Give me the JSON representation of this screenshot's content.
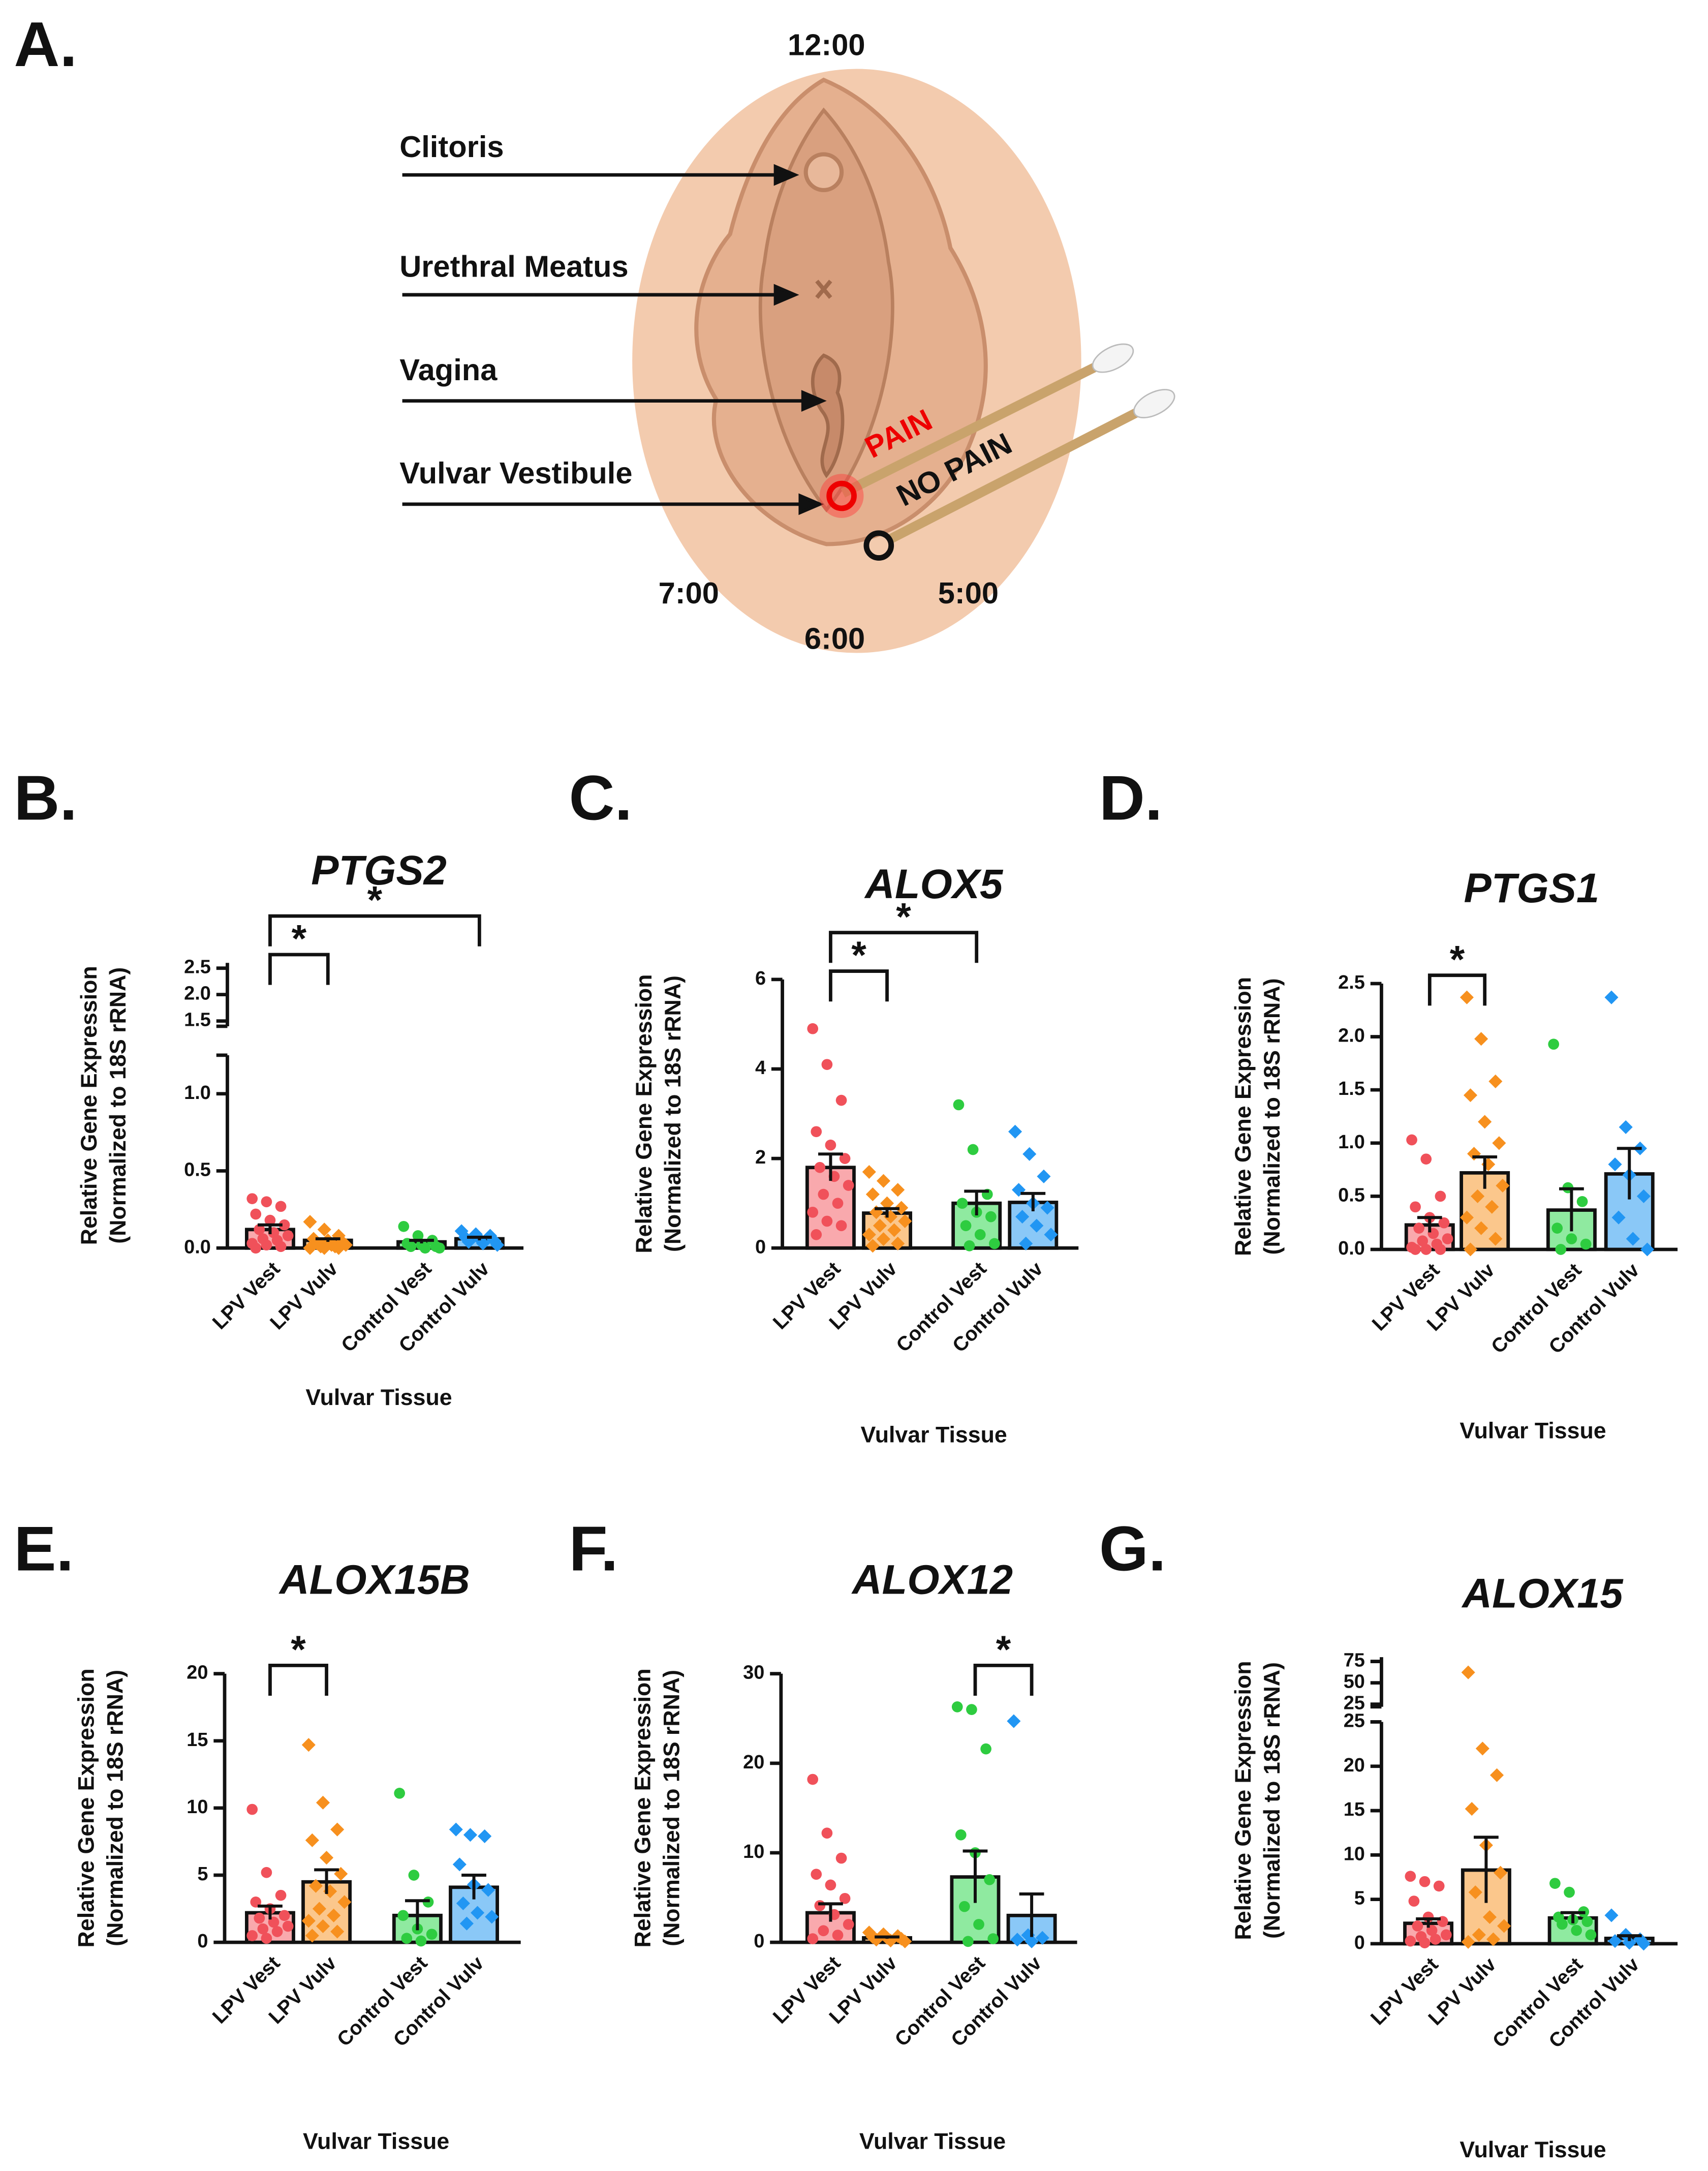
{
  "diagram": {
    "panel": "A.",
    "labels": [
      "Clitoris",
      "Urethral Meatus",
      "Vagina",
      "Vulvar Vestibule"
    ],
    "clock": [
      "12:00",
      "7:00",
      "5:00",
      "6:00"
    ],
    "pain": "PAIN",
    "no_pain": "NO PAIN"
  },
  "chart_data": [
    {
      "type": "bar",
      "panel": "B.",
      "title": "PTGS2",
      "ylabel": [
        "Relative Gene Expression",
        "(Normalized to 18S rRNA)"
      ],
      "xlabel": "Vulvar Tissue",
      "categories": [
        "LPV Vest",
        "LPV Vulv",
        "Control Vest",
        "Control Vulv"
      ],
      "colors": [
        "#f0515a",
        "#f7901e",
        "#2ecc40",
        "#2196f3"
      ],
      "fills": [
        "#f9a9ad",
        "#fbc78c",
        "#8feaa0",
        "#8ac8f7"
      ],
      "markers": [
        "circle",
        "diamond",
        "circle",
        "diamond"
      ],
      "values": [
        0.12,
        0.05,
        0.04,
        0.06
      ],
      "errors": [
        0.03,
        0.01,
        0.01,
        0.01
      ],
      "points": [
        [
          0.32,
          0.3,
          0.27,
          0.22,
          0.18,
          0.15,
          0.12,
          0.1,
          0.08,
          0.06,
          0.05,
          0.03,
          0.02,
          0.01,
          0.0
        ],
        [
          0.17,
          0.12,
          0.08,
          0.06,
          0.05,
          0.04,
          0.03,
          0.02,
          0.02,
          0.01,
          0.01,
          0.0,
          0.0,
          0.0
        ],
        [
          0.14,
          0.08,
          0.05,
          0.03,
          0.02,
          0.01,
          0.01,
          0.0,
          0.0
        ],
        [
          0.11,
          0.09,
          0.08,
          0.07,
          0.06,
          0.05,
          0.04,
          0.03,
          0.02
        ]
      ],
      "ylim": [
        0,
        1.25
      ],
      "yticks": [
        {
          "value": 0,
          "label": "0.0"
        },
        0.5,
        {
          "value": 1,
          "label": "1.0"
        }
      ],
      "upper_ylim": [
        1.4,
        2.6
      ],
      "upper_yticks": [
        1.5,
        {
          "value": 2,
          "label": "2.0"
        },
        2.5
      ],
      "significance": [
        {
          "from": 0,
          "to": 1,
          "label": "*"
        },
        {
          "from": 0,
          "to": 3,
          "label": "*"
        }
      ]
    },
    {
      "type": "bar",
      "panel": "C.",
      "title": "ALOX5",
      "ylabel": [
        "Relative Gene Expression",
        "(Normalized to 18S rRNA)"
      ],
      "xlabel": "Vulvar Tissue",
      "categories": [
        "LPV Vest",
        "LPV Vulv",
        "Control Vest",
        "Control Vulv"
      ],
      "colors": [
        "#f0515a",
        "#f7901e",
        "#2ecc40",
        "#2196f3"
      ],
      "fills": [
        "#f9a9ad",
        "#fbc78c",
        "#8feaa0",
        "#8ac8f7"
      ],
      "markers": [
        "circle",
        "diamond",
        "circle",
        "diamond"
      ],
      "values": [
        1.8,
        0.78,
        1.0,
        1.02
      ],
      "errors": [
        0.3,
        0.1,
        0.27,
        0.2
      ],
      "points": [
        [
          4.9,
          4.1,
          3.3,
          2.6,
          2.3,
          2.0,
          1.8,
          1.6,
          1.4,
          1.2,
          1.0,
          0.8,
          0.6,
          0.5,
          0.3
        ],
        [
          1.7,
          1.5,
          1.3,
          1.2,
          1.0,
          0.9,
          0.8,
          0.7,
          0.6,
          0.5,
          0.4,
          0.3,
          0.2,
          0.1,
          0.05
        ],
        [
          3.2,
          2.2,
          1.2,
          1.0,
          0.8,
          0.7,
          0.5,
          0.3,
          0.1,
          0.05
        ],
        [
          2.6,
          2.1,
          1.6,
          1.3,
          1.0,
          0.9,
          0.7,
          0.5,
          0.3,
          0.1
        ]
      ],
      "ylim": [
        0,
        6
      ],
      "yticks": [
        0,
        2,
        4,
        6
      ],
      "significance": [
        {
          "from": 0,
          "to": 1,
          "label": "*"
        },
        {
          "from": 0,
          "to": 2,
          "label": "*"
        }
      ]
    },
    {
      "type": "bar",
      "panel": "D.",
      "title": "PTGS1",
      "ylabel": [
        "Relative Gene Expression",
        "(Normalized to 18S rRNA)"
      ],
      "xlabel": "Vulvar Tissue",
      "categories": [
        "LPV Vest",
        "LPV Vulv",
        "Control Vest",
        "Control Vulv"
      ],
      "colors": [
        "#f0515a",
        "#f7901e",
        "#2ecc40",
        "#2196f3"
      ],
      "fills": [
        "#f9a9ad",
        "#fbc78c",
        "#8feaa0",
        "#8ac8f7"
      ],
      "markers": [
        "circle",
        "diamond",
        "circle",
        "diamond"
      ],
      "values": [
        0.23,
        0.72,
        0.37,
        0.71
      ],
      "errors": [
        0.07,
        0.15,
        0.2,
        0.24
      ],
      "points": [
        [
          1.03,
          0.85,
          0.5,
          0.4,
          0.3,
          0.25,
          0.2,
          0.15,
          0.1,
          0.08,
          0.05,
          0.02,
          0.0,
          0.0,
          0.0
        ],
        [
          2.37,
          1.98,
          1.58,
          1.45,
          1.2,
          1.0,
          0.9,
          0.8,
          0.6,
          0.5,
          0.4,
          0.3,
          0.2,
          0.1,
          0.0
        ],
        [
          1.93,
          0.58,
          0.45,
          0.2,
          0.1,
          0.05,
          0.0
        ],
        [
          2.37,
          1.15,
          0.95,
          0.8,
          0.7,
          0.5,
          0.3,
          0.1,
          0.0
        ]
      ],
      "ylim": [
        0,
        2.5
      ],
      "yticks": [
        {
          "value": 0,
          "label": "0.0"
        },
        0.5,
        {
          "value": 1,
          "label": "1.0"
        },
        1.5,
        {
          "value": 2,
          "label": "2.0"
        },
        2.5
      ],
      "significance": [
        {
          "from": 0,
          "to": 1,
          "label": "*"
        }
      ]
    },
    {
      "type": "bar",
      "panel": "E.",
      "title": "ALOX15B",
      "ylabel": [
        "Relative Gene Expression",
        "(Normalized to 18S rRNA)"
      ],
      "xlabel": "Vulvar Tissue",
      "categories": [
        "LPV Vest",
        "LPV Vulv",
        "Control Vest",
        "Control Vulv"
      ],
      "colors": [
        "#f0515a",
        "#f7901e",
        "#2ecc40",
        "#2196f3"
      ],
      "fills": [
        "#f9a9ad",
        "#fbc78c",
        "#8feaa0",
        "#8ac8f7"
      ],
      "markers": [
        "circle",
        "diamond",
        "circle",
        "diamond"
      ],
      "values": [
        2.2,
        4.5,
        2.0,
        4.1
      ],
      "errors": [
        0.5,
        0.9,
        1.1,
        0.9
      ],
      "points": [
        [
          9.9,
          5.2,
          3.5,
          3.0,
          2.5,
          2.0,
          1.8,
          1.5,
          1.2,
          1.0,
          0.8,
          0.5,
          0.3
        ],
        [
          14.7,
          10.4,
          8.4,
          7.6,
          6.3,
          5.1,
          4.2,
          3.8,
          3.0,
          2.5,
          2.0,
          1.6,
          1.2,
          0.8,
          0.5
        ],
        [
          11.1,
          5.0,
          3.0,
          2.0,
          1.0,
          0.6,
          0.3,
          0.1
        ],
        [
          8.4,
          8.0,
          7.9,
          5.8,
          4.3,
          3.9,
          2.9,
          2.2,
          1.9,
          1.4
        ]
      ],
      "ylim": [
        0,
        20
      ],
      "yticks": [
        0,
        5,
        10,
        15,
        20
      ],
      "significance": [
        {
          "from": 0,
          "to": 1,
          "label": "*"
        }
      ]
    },
    {
      "type": "bar",
      "panel": "F.",
      "title": "ALOX12",
      "ylabel": [
        "Relative Gene Expression",
        "(Normalized to 18S rRNA)"
      ],
      "xlabel": "Vulvar Tissue",
      "categories": [
        "LPV Vest",
        "LPV Vulv",
        "Control Vest",
        "Control Vulv"
      ],
      "colors": [
        "#f0515a",
        "#f7901e",
        "#2ecc40",
        "#2196f3"
      ],
      "fills": [
        "#f9a9ad",
        "#fbc78c",
        "#8feaa0",
        "#8ac8f7"
      ],
      "markers": [
        "circle",
        "diamond",
        "circle",
        "diamond"
      ],
      "values": [
        3.3,
        0.5,
        7.3,
        3.0
      ],
      "errors": [
        1.0,
        0.1,
        2.9,
        2.4
      ],
      "points": [
        [
          18.2,
          12.2,
          9.4,
          7.6,
          6.4,
          4.9,
          4.1,
          3.1,
          2.0,
          1.3,
          0.8,
          0.4
        ],
        [
          1.1,
          0.9,
          0.7,
          0.6,
          0.5,
          0.4,
          0.3,
          0.2,
          0.1
        ],
        [
          26.3,
          26.0,
          21.6,
          12.0,
          10.0,
          7.0,
          4.0,
          2.0,
          0.4,
          0.1
        ],
        [
          24.7,
          0.8,
          0.5,
          0.3,
          0.1
        ]
      ],
      "ylim": [
        0,
        30
      ],
      "yticks": [
        0,
        10,
        20,
        30
      ],
      "significance": [
        {
          "from": 2,
          "to": 3,
          "label": "*"
        }
      ]
    },
    {
      "type": "bar",
      "panel": "G.",
      "title": "ALOX15",
      "ylabel": [
        "Relative Gene Expression",
        "(Normalized to 18S rRNA)"
      ],
      "xlabel": "Vulvar Tissue",
      "categories": [
        "LPV Vest",
        "LPV Vulv",
        "Control Vest",
        "Control Vulv"
      ],
      "colors": [
        "#f0515a",
        "#f7901e",
        "#2ecc40",
        "#2196f3"
      ],
      "fills": [
        "#f9a9ad",
        "#fbc78c",
        "#8feaa0",
        "#8ac8f7"
      ],
      "markers": [
        "circle",
        "diamond",
        "circle",
        "diamond"
      ],
      "values": [
        2.3,
        8.3,
        2.9,
        0.6
      ],
      "errors": [
        0.5,
        3.7,
        0.6,
        0.3
      ],
      "points": [
        [
          7.6,
          7.0,
          6.5,
          4.8,
          3.0,
          2.5,
          2.0,
          1.5,
          1.0,
          0.8,
          0.5,
          0.3,
          0.1
        ],
        [
          62.2,
          22.0,
          19.0,
          15.2,
          11.1,
          8.0,
          5.8,
          3.0,
          2.0,
          1.0,
          0.5,
          0.2
        ],
        [
          6.8,
          5.8,
          3.6,
          3.0,
          2.7,
          2.5,
          2.2,
          1.5,
          1.0
        ],
        [
          3.2,
          1.0,
          0.5,
          0.3,
          0.1,
          0.0
        ]
      ],
      "ylim": [
        0,
        25
      ],
      "yticks": [
        0,
        5,
        10,
        15,
        20,
        25
      ],
      "upper_ylim": [
        22,
        80
      ],
      "upper_yticks": [
        25,
        50,
        75
      ],
      "significance": []
    }
  ]
}
